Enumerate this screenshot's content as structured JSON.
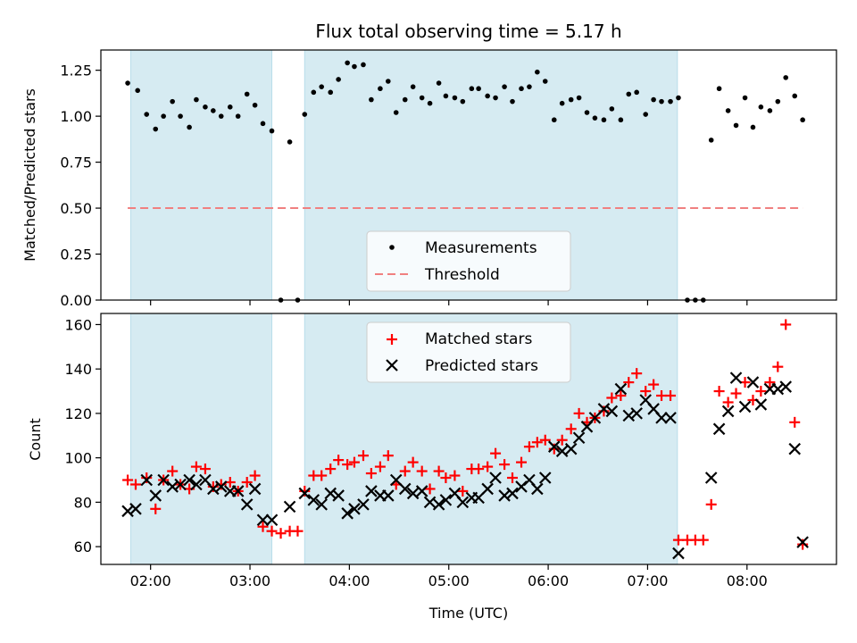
{
  "title": "Flux total observing time = 5.17 h",
  "chart_data": [
    {
      "type": "scatter",
      "ylabel": "Matched/Predicted stars",
      "xlim": [
        1.5,
        8.9
      ],
      "ylim": [
        0,
        1.36
      ],
      "yticks": [
        "0.00",
        "0.25",
        "0.50",
        "0.75",
        "1.00",
        "1.25"
      ],
      "threshold": 0.5,
      "shaded_intervals": [
        [
          1.8,
          3.22
        ],
        [
          3.55,
          7.3
        ]
      ],
      "legend": {
        "placement": "lower-center",
        "entries": [
          "Measurements",
          "Threshold"
        ]
      },
      "series": [
        {
          "name": "Measurements",
          "x": [
            1.77,
            1.87,
            1.96,
            2.05,
            2.13,
            2.22,
            2.3,
            2.39,
            2.46,
            2.55,
            2.63,
            2.71,
            2.8,
            2.88,
            2.97,
            3.05,
            3.13,
            3.22,
            3.31,
            3.4,
            3.48,
            3.55,
            3.64,
            3.72,
            3.81,
            3.89,
            3.98,
            4.05,
            4.14,
            4.22,
            4.31,
            4.39,
            4.47,
            4.56,
            4.64,
            4.73,
            4.81,
            4.9,
            4.97,
            5.06,
            5.14,
            5.23,
            5.3,
            5.39,
            5.47,
            5.56,
            5.64,
            5.73,
            5.81,
            5.89,
            5.97,
            6.06,
            6.14,
            6.23,
            6.31,
            6.39,
            6.47,
            6.56,
            6.64,
            6.73,
            6.81,
            6.89,
            6.98,
            7.06,
            7.14,
            7.23,
            7.31,
            7.4,
            7.48,
            7.56,
            7.64,
            7.72,
            7.81,
            7.89,
            7.98,
            8.06,
            8.14,
            8.23,
            8.31,
            8.39,
            8.48,
            8.56
          ],
          "y": [
            1.18,
            1.14,
            1.01,
            0.93,
            1.0,
            1.08,
            1.0,
            0.94,
            1.09,
            1.05,
            1.03,
            1.0,
            1.05,
            1.0,
            1.12,
            1.06,
            0.96,
            0.92,
            0.0,
            0.86,
            0.0,
            1.01,
            1.13,
            1.16,
            1.13,
            1.2,
            1.29,
            1.27,
            1.28,
            1.09,
            1.15,
            1.19,
            1.02,
            1.09,
            1.16,
            1.1,
            1.07,
            1.18,
            1.11,
            1.1,
            1.08,
            1.15,
            1.15,
            1.11,
            1.1,
            1.16,
            1.08,
            1.15,
            1.16,
            1.24,
            1.19,
            0.98,
            1.07,
            1.09,
            1.1,
            1.02,
            0.99,
            0.98,
            1.04,
            0.98,
            1.12,
            1.13,
            1.01,
            1.09,
            1.08,
            1.08,
            1.1,
            0.0,
            0.0,
            0.0,
            0.87,
            1.15,
            1.03,
            0.95,
            1.1,
            0.94,
            1.05,
            1.03,
            1.08,
            1.21,
            1.11,
            0.98
          ]
        }
      ]
    },
    {
      "type": "scatter",
      "ylabel": "Count",
      "xlabel": "Time (UTC)",
      "xlim": [
        1.5,
        8.9
      ],
      "ylim": [
        52,
        165
      ],
      "yticks": [
        "60",
        "80",
        "100",
        "120",
        "140",
        "160"
      ],
      "xticks": [
        {
          "value": 2,
          "label": "02:00"
        },
        {
          "value": 3,
          "label": "03:00"
        },
        {
          "value": 4,
          "label": "04:00"
        },
        {
          "value": 5,
          "label": "05:00"
        },
        {
          "value": 6,
          "label": "06:00"
        },
        {
          "value": 7,
          "label": "07:00"
        },
        {
          "value": 8,
          "label": "08:00"
        }
      ],
      "shaded_intervals": [
        [
          1.8,
          3.22
        ],
        [
          3.55,
          7.3
        ]
      ],
      "legend": {
        "placement": "upper-center",
        "entries": [
          "Matched stars",
          "Predicted stars"
        ]
      },
      "series": [
        {
          "name": "Matched stars",
          "marker": "+",
          "color": "#ff0000",
          "x": [
            1.77,
            1.85,
            1.96,
            2.05,
            2.13,
            2.22,
            2.3,
            2.39,
            2.46,
            2.55,
            2.63,
            2.71,
            2.8,
            2.88,
            2.97,
            3.05,
            3.13,
            3.22,
            3.31,
            3.4,
            3.48,
            3.55,
            3.64,
            3.72,
            3.81,
            3.89,
            3.98,
            4.05,
            4.14,
            4.22,
            4.31,
            4.39,
            4.47,
            4.56,
            4.64,
            4.73,
            4.81,
            4.9,
            4.97,
            5.06,
            5.14,
            5.23,
            5.3,
            5.39,
            5.47,
            5.56,
            5.64,
            5.73,
            5.81,
            5.89,
            5.97,
            6.06,
            6.14,
            6.23,
            6.31,
            6.39,
            6.47,
            6.56,
            6.64,
            6.73,
            6.81,
            6.89,
            6.98,
            7.06,
            7.14,
            7.23,
            7.31,
            7.4,
            7.48,
            7.56,
            7.64,
            7.72,
            7.81,
            7.89,
            7.98,
            8.06,
            8.14,
            8.23,
            8.31,
            8.39,
            8.48,
            8.56
          ],
          "y": [
            90,
            88,
            91,
            77,
            90,
            94,
            88,
            86,
            96,
            95,
            87,
            88,
            89,
            85,
            89,
            92,
            69,
            67,
            66,
            67,
            67,
            85,
            92,
            92,
            95,
            99,
            97,
            98,
            101,
            93,
            96,
            101,
            88,
            94,
            98,
            94,
            86,
            94,
            91,
            92,
            85,
            95,
            95,
            96,
            102,
            97,
            91,
            98,
            105,
            107,
            108,
            104,
            108,
            113,
            120,
            116,
            118,
            121,
            127,
            128,
            134,
            138,
            130,
            133,
            128,
            128,
            63,
            63,
            63,
            63,
            79,
            130,
            125,
            129,
            134,
            126,
            130,
            134,
            141,
            160,
            116,
            61
          ]
        },
        {
          "name": "Predicted stars",
          "marker": "x",
          "color": "#000000",
          "x": [
            1.77,
            1.85,
            1.96,
            2.05,
            2.13,
            2.22,
            2.3,
            2.39,
            2.46,
            2.55,
            2.63,
            2.71,
            2.8,
            2.88,
            2.97,
            3.05,
            3.13,
            3.22,
            3.4,
            3.55,
            3.64,
            3.72,
            3.81,
            3.89,
            3.98,
            4.05,
            4.14,
            4.22,
            4.31,
            4.39,
            4.47,
            4.56,
            4.64,
            4.73,
            4.81,
            4.9,
            4.97,
            5.06,
            5.14,
            5.23,
            5.3,
            5.39,
            5.47,
            5.56,
            5.64,
            5.73,
            5.81,
            5.89,
            5.97,
            6.06,
            6.14,
            6.23,
            6.31,
            6.39,
            6.47,
            6.56,
            6.64,
            6.73,
            6.81,
            6.89,
            6.98,
            7.06,
            7.14,
            7.23,
            7.31,
            7.64,
            7.72,
            7.81,
            7.89,
            7.98,
            8.06,
            8.14,
            8.23,
            8.31,
            8.39,
            8.48,
            8.56
          ],
          "y": [
            76,
            77,
            90,
            83,
            90,
            87,
            88,
            90,
            88,
            90,
            86,
            87,
            85,
            85,
            79,
            86,
            72,
            72,
            78,
            84,
            81,
            79,
            84,
            83,
            75,
            77,
            79,
            85,
            83,
            83,
            90,
            86,
            84,
            85,
            80,
            79,
            81,
            84,
            80,
            82,
            82,
            86,
            91,
            83,
            84,
            87,
            90,
            86,
            91,
            105,
            103,
            104,
            109,
            114,
            118,
            122,
            121,
            131,
            119,
            120,
            126,
            122,
            118,
            118,
            57,
            91,
            113,
            121,
            136,
            123,
            134,
            124,
            131,
            131,
            132,
            104,
            62
          ]
        }
      ]
    }
  ]
}
